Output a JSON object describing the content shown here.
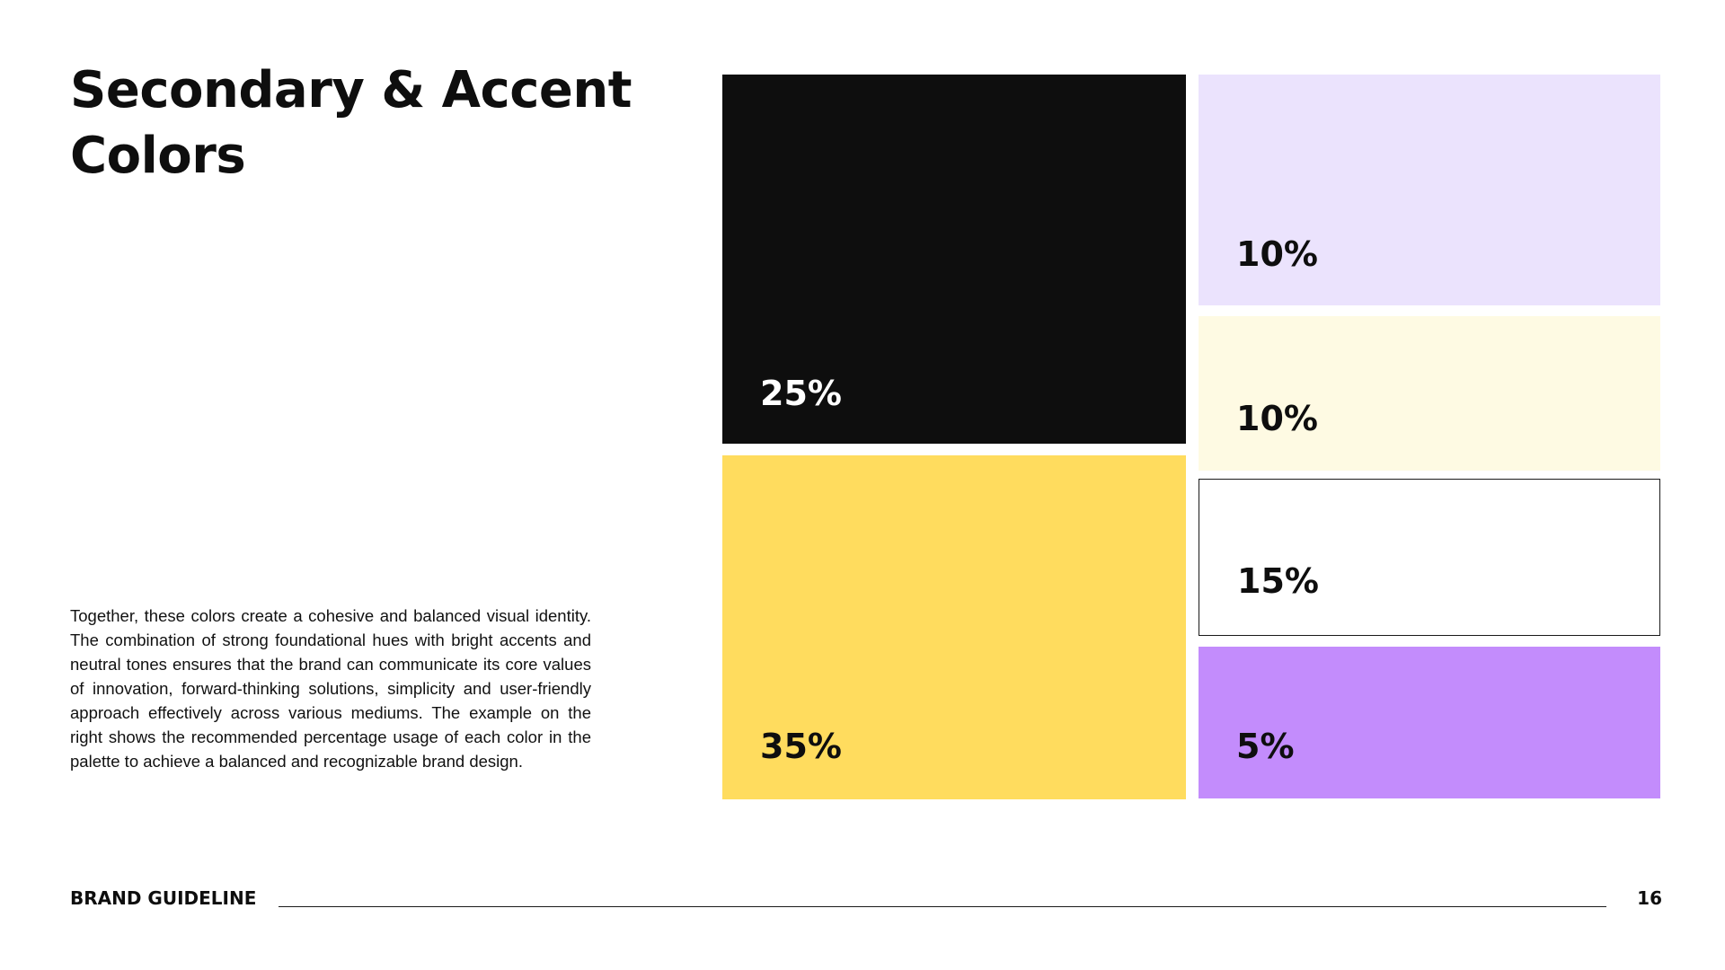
{
  "page": {
    "title_lines": [
      "Secondary & Accent",
      "Colors"
    ],
    "body": "Together, these colors create a cohesive and balanced visual identity. The combination of strong foundational hues with bright accents and neutral tones ensures that the brand can communicate its core values of innovation, forward-thinking solutions, simplicity and user-friendly approach effectively across various mediums. The example on the right shows the recommended percentage usage of each color in the palette to achieve a balanced and recognizable brand design."
  },
  "swatches": [
    {
      "label": "25%",
      "value": 25,
      "color": "#0e0e0e"
    },
    {
      "label": "35%",
      "value": 35,
      "color": "#ffdc5e"
    },
    {
      "label": "10%",
      "value": 10,
      "color": "#ebe3fd"
    },
    {
      "label": "10%",
      "value": 10,
      "color": "#fefae3"
    },
    {
      "label": "15%",
      "value": 15,
      "color": "#ffffff"
    },
    {
      "label": "5%",
      "value": 5,
      "color": "#c38cfc"
    }
  ],
  "footer": {
    "label": "BRAND GUIDELINE",
    "page_number": "16"
  }
}
